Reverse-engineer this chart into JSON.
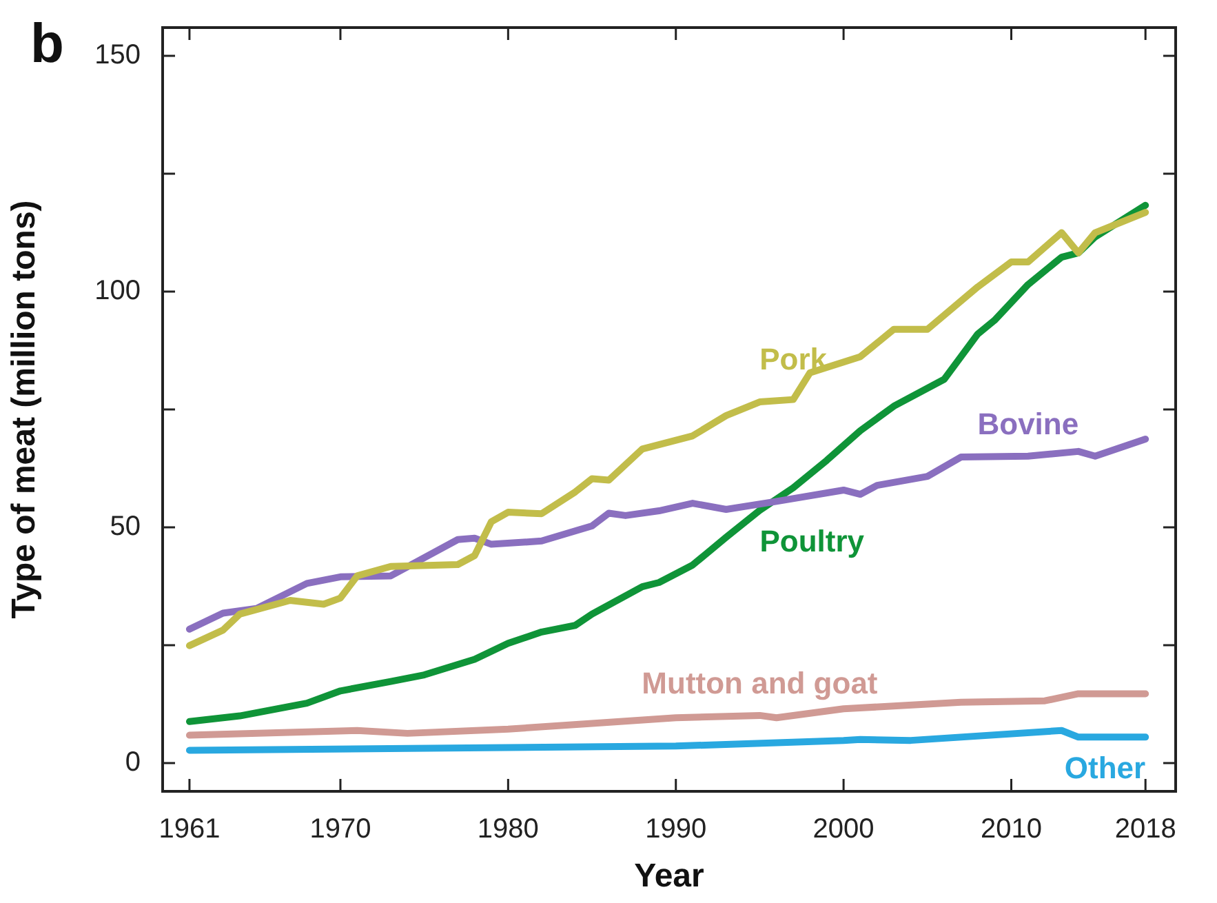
{
  "chart_data": {
    "type": "line",
    "xlabel": "Year",
    "ylabel": "Type of meat (million tons)",
    "annotations": [
      "b"
    ],
    "xlim": [
      1959.4,
      2019.8
    ],
    "xticks": [
      1961,
      1970,
      1980,
      1990,
      2000,
      2010,
      2018
    ],
    "ylim": [
      -6,
      156
    ],
    "yticks": [
      0,
      {
        "value": 25,
        "label": null
      },
      50,
      {
        "value": 75,
        "label": null
      },
      100,
      {
        "value": 125,
        "label": null
      },
      150
    ],
    "series": [
      {
        "name": "Pork",
        "color": "#c2bd4a",
        "x": [
          1961,
          1963,
          1964,
          1967,
          1969,
          1970,
          1971,
          1973,
          1977,
          1978,
          1979,
          1980,
          1982,
          1984,
          1985,
          1986,
          1988,
          1991,
          1993,
          1995,
          1997,
          1998,
          2001,
          2003,
          2005,
          2008,
          2010,
          2011,
          2013,
          2014,
          2015,
          2018
        ],
        "values": [
          24.9,
          28.2,
          31.6,
          34.5,
          33.7,
          35,
          39.7,
          41.7,
          42.1,
          44,
          51.2,
          53.2,
          52.9,
          57.5,
          60.3,
          60,
          66.6,
          69.4,
          73.7,
          76.6,
          77.1,
          82.8,
          86.2,
          92,
          92,
          101,
          106.3,
          106.3,
          112.5,
          108.2,
          112.5,
          116.8
        ]
      },
      {
        "name": "Bovine",
        "color": "#8a6fbf",
        "x": [
          1961,
          1963,
          1965,
          1968,
          1970,
          1973,
          1977,
          1978,
          1979,
          1982,
          1985,
          1986,
          1987,
          1989,
          1991,
          1993,
          1996,
          2000,
          2001,
          2002,
          2005,
          2007,
          2011,
          2014,
          2015,
          2018
        ],
        "values": [
          28.4,
          31.8,
          32.8,
          38.1,
          39.5,
          39.7,
          47.4,
          47.7,
          46.4,
          47.1,
          50.3,
          53,
          52.5,
          53.5,
          55.1,
          53.8,
          55.5,
          57.9,
          57,
          58.9,
          60.8,
          64.9,
          65.1,
          66.1,
          65.1,
          68.7
        ]
      },
      {
        "name": "Poultry",
        "color": "#0f9438",
        "x": [
          1961,
          1964,
          1968,
          1970,
          1973,
          1975,
          1978,
          1980,
          1982,
          1984,
          1985,
          1988,
          1989,
          1991,
          1993,
          1995,
          1997,
          1999,
          2001,
          2003,
          2006,
          2008,
          2009,
          2011,
          2013,
          2014,
          2015,
          2018
        ],
        "values": [
          8.8,
          10,
          12.7,
          15.3,
          17.3,
          18.7,
          22,
          25.4,
          27.8,
          29.2,
          31.6,
          37.4,
          38.3,
          42,
          47.9,
          53.6,
          58.4,
          64.2,
          70.5,
          75.7,
          81.4,
          91,
          93.9,
          101.5,
          107.3,
          108.2,
          111.6,
          118.3
        ]
      },
      {
        "name": "Mutton and goat",
        "color": "#d09a94",
        "x": [
          1961,
          1971,
          1974,
          1980,
          1985,
          1990,
          1995,
          1996,
          2000,
          2007,
          2012,
          2014,
          2018
        ],
        "values": [
          5.9,
          6.9,
          6.3,
          7.2,
          8.4,
          9.6,
          10.1,
          9.6,
          11.5,
          12.9,
          13.2,
          14.7,
          14.7
        ]
      },
      {
        "name": "Other",
        "color": "#29a8e0",
        "x": [
          1961,
          1990,
          2000,
          2001,
          2004,
          2013,
          2014,
          2018
        ],
        "values": [
          2.7,
          3.6,
          4.8,
          5,
          4.8,
          6.9,
          5.5,
          5.5
        ]
      }
    ]
  }
}
